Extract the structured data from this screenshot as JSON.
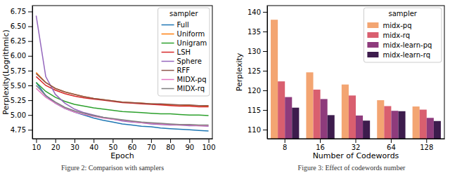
{
  "chart_data": [
    {
      "type": "line",
      "x_label": "Epoch",
      "y_label": "Perplexity(Logrithmic)",
      "caption": "Figure 2: Comparison with samplers",
      "legend": "upper right",
      "legend_title": "sampler",
      "x": [
        10,
        15,
        20,
        25,
        30,
        35,
        40,
        45,
        50,
        55,
        60,
        65,
        70,
        75,
        80,
        85,
        90,
        95,
        100
      ],
      "xlim": [
        8,
        102
      ],
      "xticks": [
        10,
        20,
        30,
        40,
        50,
        60,
        70,
        80,
        90,
        100
      ],
      "ylim": [
        4.6,
        6.85
      ],
      "yticks": [
        4.75,
        {
          "value": 5,
          "label": "5.00"
        },
        5.25,
        {
          "value": 5.5,
          "label": "5.50"
        },
        5.75,
        {
          "value": 6,
          "label": "6.00"
        },
        6.25,
        {
          "value": 6.5,
          "label": "6.50"
        },
        6.75
      ],
      "series": [
        {
          "name": "Full",
          "color": "#1f77b4",
          "values": [
            5.55,
            5.33,
            5.2,
            5.11,
            5.05,
            5.0,
            4.95,
            4.91,
            4.88,
            4.85,
            4.83,
            4.81,
            4.8,
            4.78,
            4.77,
            4.76,
            4.75,
            4.74,
            4.73
          ]
        },
        {
          "name": "Uniform",
          "color": "#ff7f0e",
          "values": [
            5.72,
            5.55,
            5.45,
            5.39,
            5.35,
            5.31,
            5.28,
            5.26,
            5.24,
            5.22,
            5.21,
            5.2,
            5.19,
            5.18,
            5.17,
            5.17,
            5.16,
            5.16,
            5.15
          ]
        },
        {
          "name": "Unigram",
          "color": "#2ca02c",
          "values": [
            5.55,
            5.4,
            5.3,
            5.23,
            5.18,
            5.15,
            5.12,
            5.1,
            5.08,
            5.06,
            5.05,
            5.04,
            5.03,
            5.02,
            5.02,
            5.01,
            5.0,
            5.0,
            4.99
          ]
        },
        {
          "name": "LSH",
          "color": "#d62728",
          "values": [
            5.65,
            5.5,
            5.42,
            5.36,
            5.32,
            5.29,
            5.27,
            5.25,
            5.23,
            5.21,
            5.2,
            5.19,
            5.18,
            5.17,
            5.16,
            5.15,
            5.15,
            5.14,
            5.14
          ]
        },
        {
          "name": "Sphere",
          "color": "#9467bd",
          "values": [
            6.68,
            5.65,
            5.35,
            5.2,
            5.1,
            5.04,
            5.0,
            4.96,
            4.93,
            4.9,
            4.88,
            4.87,
            4.85,
            4.84,
            4.83,
            4.83,
            4.82,
            4.82,
            4.81
          ]
        },
        {
          "name": "RFF",
          "color": "#8c564b",
          "values": [
            5.7,
            5.55,
            5.45,
            5.39,
            5.35,
            5.31,
            5.28,
            5.26,
            5.24,
            5.22,
            5.21,
            5.2,
            5.19,
            5.19,
            5.18,
            5.17,
            5.17,
            5.16,
            5.16
          ]
        },
        {
          "name": "MIDX-pq",
          "color": "#e377c2",
          "values": [
            5.45,
            5.3,
            5.2,
            5.11,
            5.05,
            5.01,
            4.98,
            4.95,
            4.93,
            4.91,
            4.89,
            4.87,
            4.86,
            4.85,
            4.84,
            4.83,
            4.83,
            4.82,
            4.82
          ]
        },
        {
          "name": "MIDX-rq",
          "color": "#7f7f7f",
          "values": [
            5.5,
            5.33,
            5.22,
            5.13,
            5.07,
            5.03,
            4.99,
            4.96,
            4.94,
            4.92,
            4.9,
            4.88,
            4.87,
            4.86,
            4.85,
            4.84,
            4.84,
            4.83,
            4.83
          ]
        }
      ]
    },
    {
      "type": "bar",
      "x_label": "Number of Codewords",
      "y_label": "Perplexity",
      "caption": "Figure 3: Effect of codewords number",
      "legend": "upper right",
      "legend_title": "sampler",
      "categories": [
        "8",
        "16",
        "32",
        "64",
        "128"
      ],
      "ylim": [
        107.7,
        141.6
      ],
      "yticks": [
        110,
        115,
        120,
        125,
        130,
        135,
        140
      ],
      "series": [
        {
          "name": "midx-pq",
          "color": "#f3a572",
          "values": [
            138,
            124.6,
            121.5,
            117.5,
            115.9
          ]
        },
        {
          "name": "midx-rq",
          "color": "#d95f6f",
          "values": [
            122.3,
            120.2,
            118.7,
            116.0,
            115.1
          ]
        },
        {
          "name": "midx-learn-pq",
          "color": "#8e3b7c",
          "values": [
            118.3,
            117.8,
            113.6,
            114.8,
            113.0
          ]
        },
        {
          "name": "midx-learn-rq",
          "color": "#3d1c4d",
          "values": [
            115.6,
            113.7,
            112.3,
            114.7,
            112.2
          ]
        }
      ]
    }
  ]
}
